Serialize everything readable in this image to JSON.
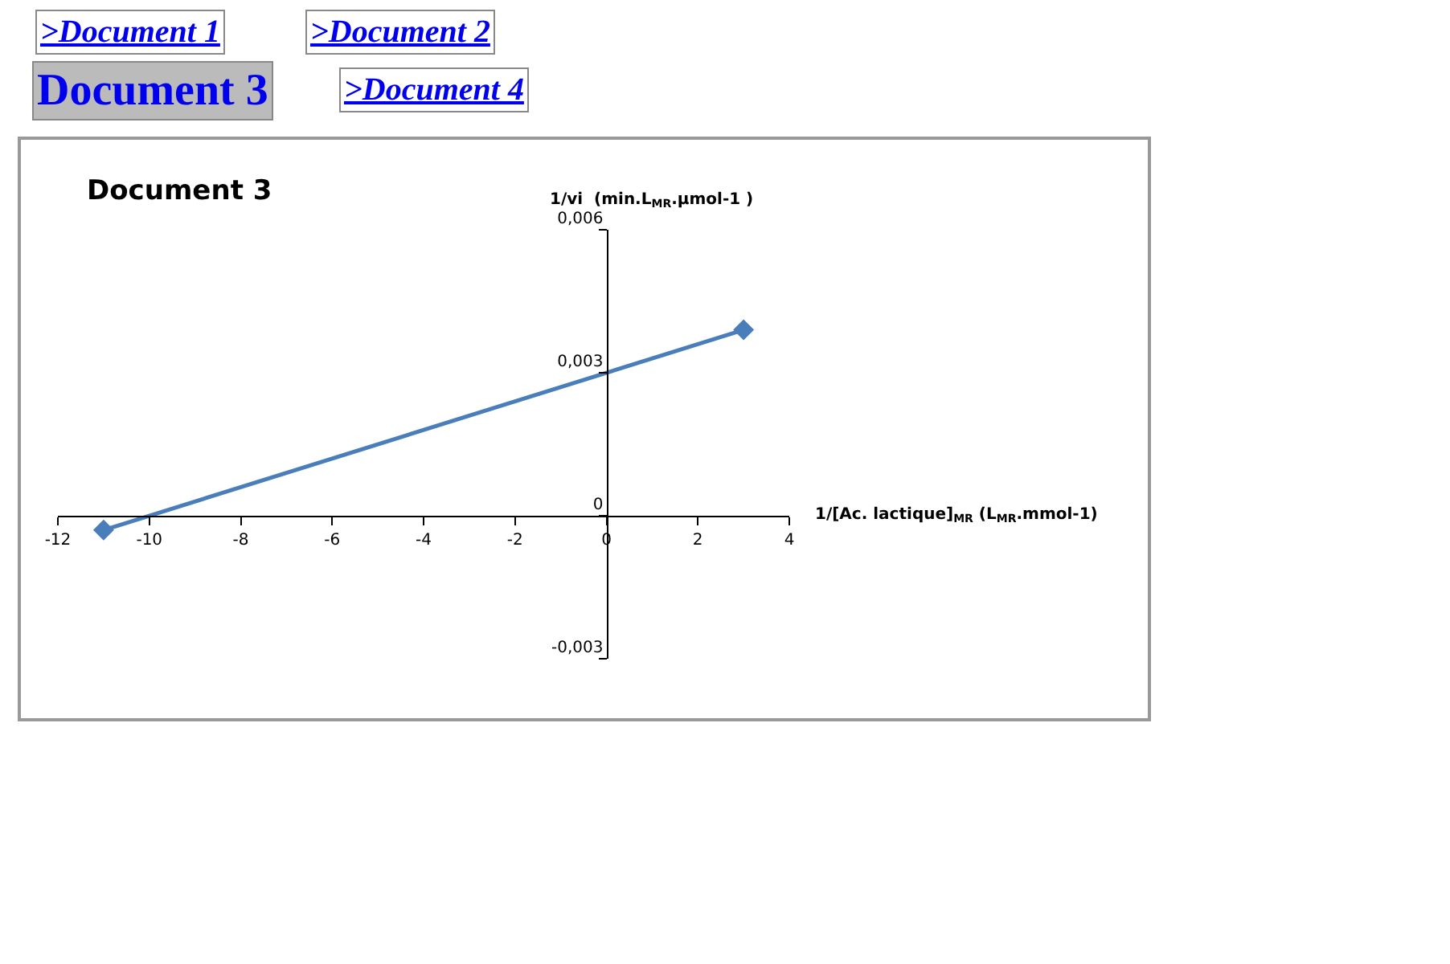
{
  "chart_data": {
    "type": "line",
    "title": "Document 3",
    "xlabel": "1/[Ac. lactique]$_{MR}$ (L$_{MR}$.mmol-1)",
    "ylabel": "1/vi  (min.L$_{MR}$.µmol-1 )",
    "annotations": [
      ">Document 1",
      ">Document 2",
      "Document 3",
      ">Document 4"
    ],
    "x": [
      -11,
      3
    ],
    "series": [
      {
        "color": "#4a7ebb",
        "values": [
          -0.0003,
          0.0039
        ]
      }
    ],
    "marker": "diamond",
    "line_style": "solid",
    "xlim": [
      -12,
      4
    ],
    "xticks": [
      -12,
      -10,
      -8,
      -6,
      -4,
      -2,
      0,
      2,
      4
    ],
    "ylim": [
      -0.003,
      0.006
    ],
    "yticks": [
      {
        "value": -0.003,
        "label": "-0,003"
      },
      {
        "value": 0,
        "label": "0"
      },
      {
        "value": 0.003,
        "label": "0,003"
      },
      {
        "value": 0.006,
        "label": "0,006"
      }
    ]
  }
}
